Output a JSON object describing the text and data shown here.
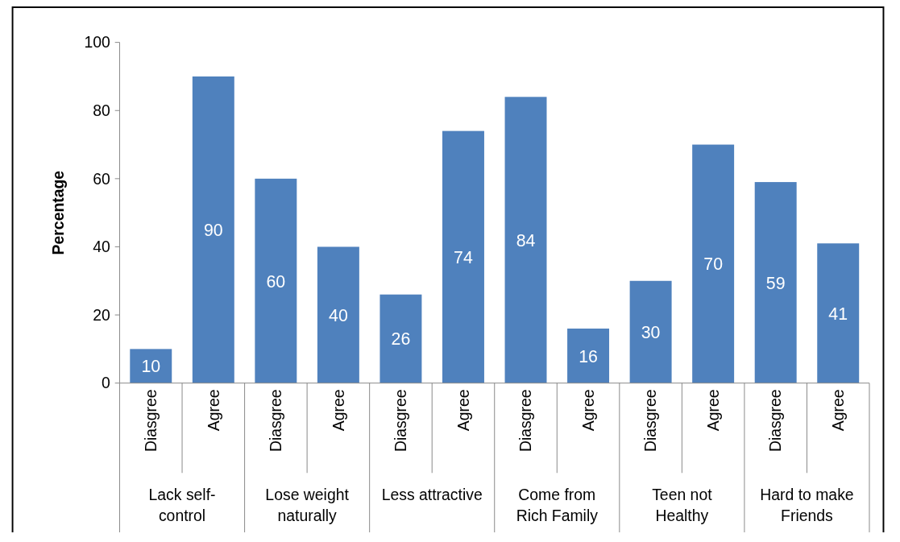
{
  "chart_data": {
    "type": "bar",
    "ylabel": "Percentage",
    "categories": [
      "Diasgree",
      "Agree",
      "Diasgree",
      "Agree",
      "Diasgree",
      "Agree",
      "Diasgree",
      "Agree",
      "Diasgree",
      "Agree",
      "Diasgree",
      "Agree"
    ],
    "values": [
      10,
      90,
      60,
      40,
      26,
      74,
      84,
      16,
      30,
      70,
      59,
      41
    ],
    "color": "#4f81bd",
    "ylim": [
      0,
      100
    ],
    "yticks": [
      0,
      20,
      40,
      60,
      80,
      100
    ],
    "data_labels": true,
    "annotations": [
      "Lack self-\ncontrol",
      "Lose weight\nnaturally",
      "Less attractive",
      "Come from\nRich Family",
      "Teen not\nHealthy",
      "Hard to make\nFriends"
    ]
  }
}
